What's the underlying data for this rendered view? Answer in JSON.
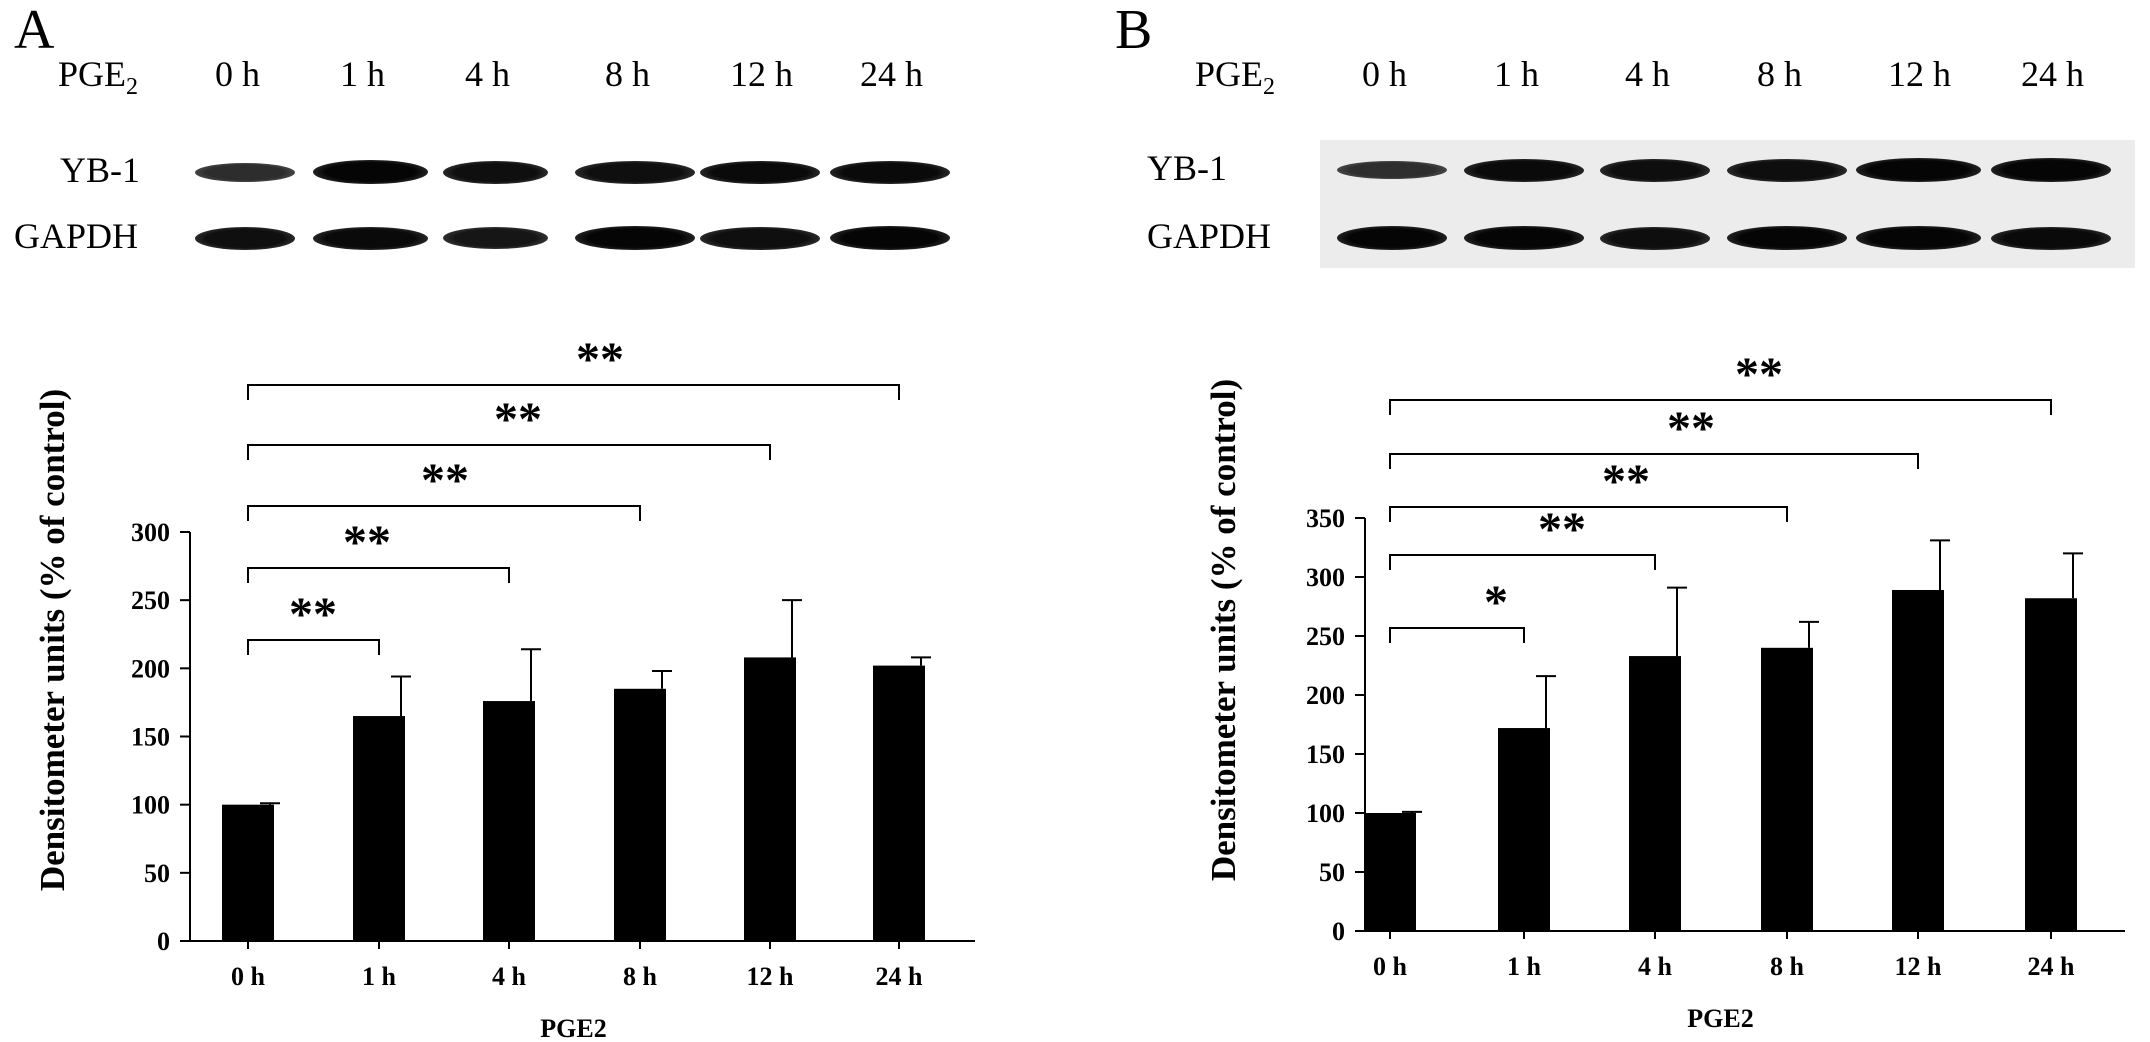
{
  "figure": {
    "panels": [
      {
        "label": "A",
        "blot": {
          "treatment_label": "PGE",
          "treatment_subscript": "2",
          "timepoints": [
            "0 h",
            "1 h",
            "4 h",
            "8 h",
            "12 h",
            "24 h"
          ],
          "rows": [
            {
              "name": "YB-1",
              "band_intensity": [
                0.65,
                1.0,
                0.9,
                0.9,
                0.95,
                0.95
              ]
            },
            {
              "name": "GAPDH",
              "band_intensity": [
                0.9,
                0.95,
                0.85,
                1.0,
                0.9,
                1.0
              ]
            }
          ]
        }
      },
      {
        "label": "B",
        "blot": {
          "treatment_label": "PGE",
          "treatment_subscript": "2",
          "timepoints": [
            "0 h",
            "1 h",
            "4 h",
            "8 h",
            "12 h",
            "24 h"
          ],
          "rows": [
            {
              "name": "YB-1",
              "band_intensity": [
                0.6,
                0.95,
                0.9,
                0.9,
                1.0,
                1.0
              ]
            },
            {
              "name": "GAPDH",
              "band_intensity": [
                1.0,
                1.0,
                0.9,
                1.0,
                1.0,
                0.95
              ]
            }
          ]
        }
      }
    ]
  },
  "chart_data": [
    {
      "type": "bar",
      "panel": "A",
      "categories": [
        "0 h",
        "1 h",
        "4 h",
        "8 h",
        "12 h",
        "24 h"
      ],
      "values": [
        100,
        165,
        176,
        185,
        208,
        202
      ],
      "errors": [
        1,
        29,
        38,
        13,
        42,
        6
      ],
      "xlabel": "PGE2",
      "ylabel": "Densitometer units (% of control)",
      "ylim": [
        0,
        300
      ],
      "yticks": [
        0,
        50,
        100,
        150,
        200,
        250,
        300
      ],
      "significance": [
        {
          "from": "0 h",
          "to": "1 h",
          "label": "**"
        },
        {
          "from": "0 h",
          "to": "4 h",
          "label": "**"
        },
        {
          "from": "0 h",
          "to": "8 h",
          "label": "**"
        },
        {
          "from": "0 h",
          "to": "12 h",
          "label": "**"
        },
        {
          "from": "0 h",
          "to": "24 h",
          "label": "**"
        }
      ],
      "bar_color": "#000000",
      "grid": false
    },
    {
      "type": "bar",
      "panel": "B",
      "categories": [
        "0 h",
        "1 h",
        "4 h",
        "8 h",
        "12 h",
        "24 h"
      ],
      "values": [
        100,
        172,
        233,
        240,
        289,
        282
      ],
      "errors": [
        1,
        44,
        58,
        22,
        42,
        38
      ],
      "xlabel": "PGE2",
      "ylabel": "Densitometer units (% of control)",
      "ylim": [
        0,
        350
      ],
      "yticks": [
        0,
        50,
        100,
        150,
        200,
        250,
        300,
        350
      ],
      "significance": [
        {
          "from": "0 h",
          "to": "1 h",
          "label": "*"
        },
        {
          "from": "0 h",
          "to": "4 h",
          "label": "**"
        },
        {
          "from": "0 h",
          "to": "8 h",
          "label": "**"
        },
        {
          "from": "0 h",
          "to": "12 h",
          "label": "**"
        },
        {
          "from": "0 h",
          "to": "24 h",
          "label": "**"
        }
      ],
      "bar_color": "#000000",
      "grid": false
    }
  ]
}
